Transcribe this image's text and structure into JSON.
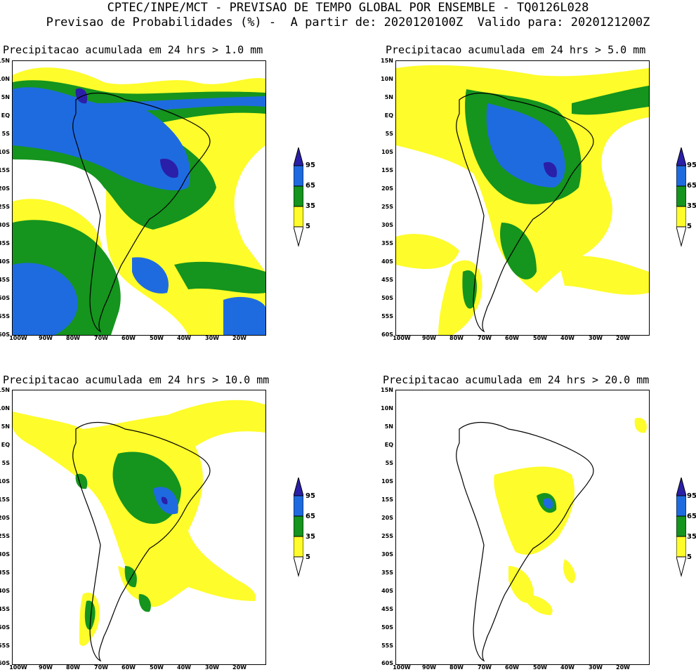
{
  "header": {
    "line1": "CPTEC/INPE/MCT - PREVISAO DE TEMPO GLOBAL POR ENSEMBLE - TQ0126L028",
    "line2": "Previsao de Probabilidades (%) -  A partir de: 2020120100Z  Valido para: 2020121200Z"
  },
  "panels": [
    {
      "title": "Precipitacao acumulada em 24 hrs > 1.0 mm"
    },
    {
      "title": "Precipitacao acumulada em 24 hrs > 5.0 mm"
    },
    {
      "title": "Precipitacao acumulada em 24 hrs > 10.0 mm"
    },
    {
      "title": "Precipitacao acumulada em 24 hrs > 20.0 mm"
    }
  ],
  "axes": {
    "lat_labels": [
      "15N",
      "10N",
      "5N",
      "EQ",
      "5S",
      "10S",
      "15S",
      "20S",
      "25S",
      "30S",
      "35S",
      "40S",
      "45S",
      "50S",
      "55S",
      "60S"
    ],
    "lon_labels": [
      "100W",
      "90W",
      "80W",
      "70W",
      "60W",
      "50W",
      "40W",
      "30W",
      "20W"
    ]
  },
  "colorbar": {
    "labels": [
      "95",
      "65",
      "35",
      "5"
    ],
    "colors": {
      "c95": "#2a1fa8",
      "c65": "#1e6be0",
      "c35": "#15941e",
      "c5": "#fefc2a"
    }
  }
}
